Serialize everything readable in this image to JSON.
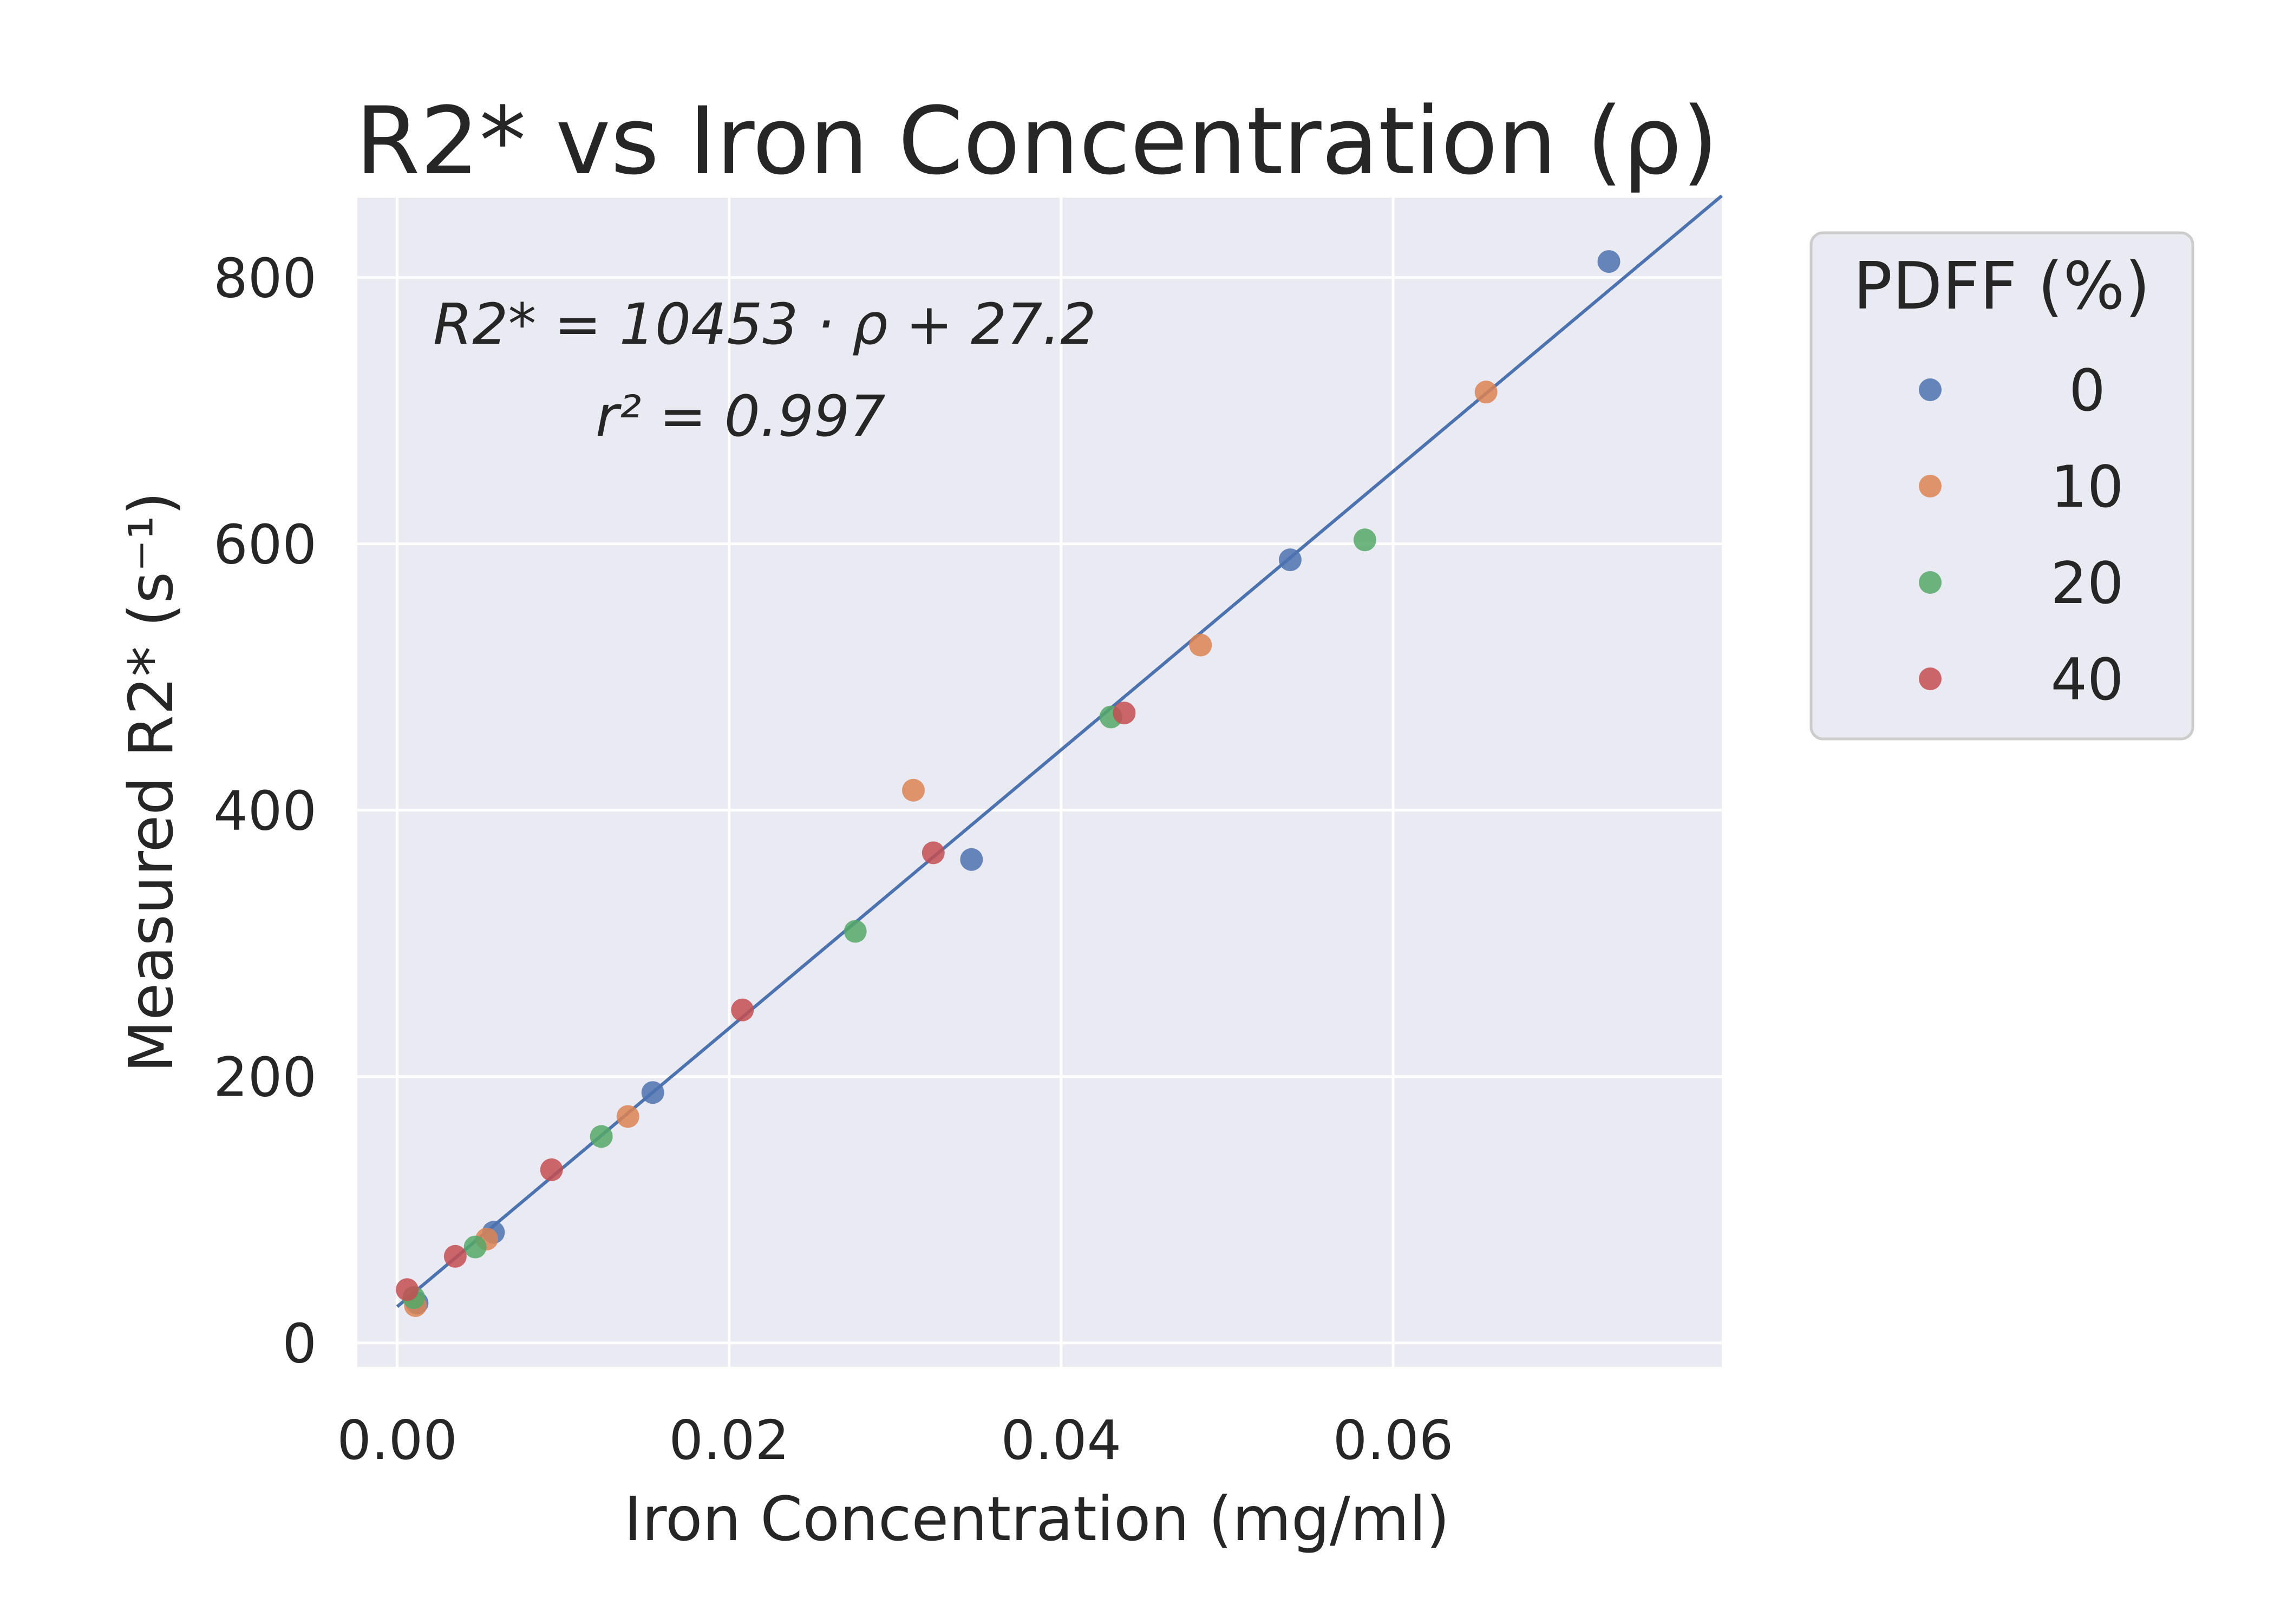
{
  "chart_data": {
    "type": "scatter",
    "title": "R2* vs Iron Concentration (ρ)",
    "xlabel": "Iron Concentration (mg/ml)",
    "ylabel": "Measured R2* (s⁻¹)",
    "xlim": [
      -0.0024,
      0.0798
    ],
    "ylim": [
      -18,
      860
    ],
    "xticks": [
      0.0,
      0.02,
      0.04,
      0.06
    ],
    "xtick_labels": [
      "0.00",
      "0.02",
      "0.04",
      "0.06"
    ],
    "yticks": [
      0,
      200,
      400,
      600,
      800
    ],
    "ytick_labels": [
      "0",
      "200",
      "400",
      "600",
      "800"
    ],
    "grid": true,
    "legend": {
      "title": "PDFF (%)",
      "placement": "outside-right",
      "entries": [
        "0",
        "10",
        "20",
        "40"
      ]
    },
    "annotation": {
      "equation": "R2* = 10453 · ρ + 27.2",
      "r_squared": "r² = 0.997"
    },
    "fit_line": {
      "slope": 10453,
      "intercept": 27.2,
      "x_range": [
        0.0,
        0.0798
      ],
      "color": "#4c72b0"
    },
    "series": [
      {
        "name": "0",
        "color": "#4c72b0",
        "x": [
          0.0012,
          0.0058,
          0.0154,
          0.0346,
          0.0538,
          0.073
        ],
        "y": [
          30,
          83,
          188,
          363,
          588,
          812
        ]
      },
      {
        "name": "10",
        "color": "#dd8452",
        "x": [
          0.0011,
          0.0054,
          0.0139,
          0.0311,
          0.0484,
          0.0656
        ],
        "y": [
          28,
          78,
          170,
          415,
          524,
          714
        ]
      },
      {
        "name": "20",
        "color": "#55a868",
        "x": [
          0.001,
          0.0047,
          0.0123,
          0.0276,
          0.043,
          0.0583
        ],
        "y": [
          34,
          72,
          155,
          309,
          470,
          603
        ]
      },
      {
        "name": "40",
        "color": "#c44e52",
        "x": [
          0.0006,
          0.0035,
          0.0093,
          0.0208,
          0.0323,
          0.0438
        ],
        "y": [
          40,
          65,
          130,
          250,
          368,
          473
        ]
      }
    ]
  }
}
